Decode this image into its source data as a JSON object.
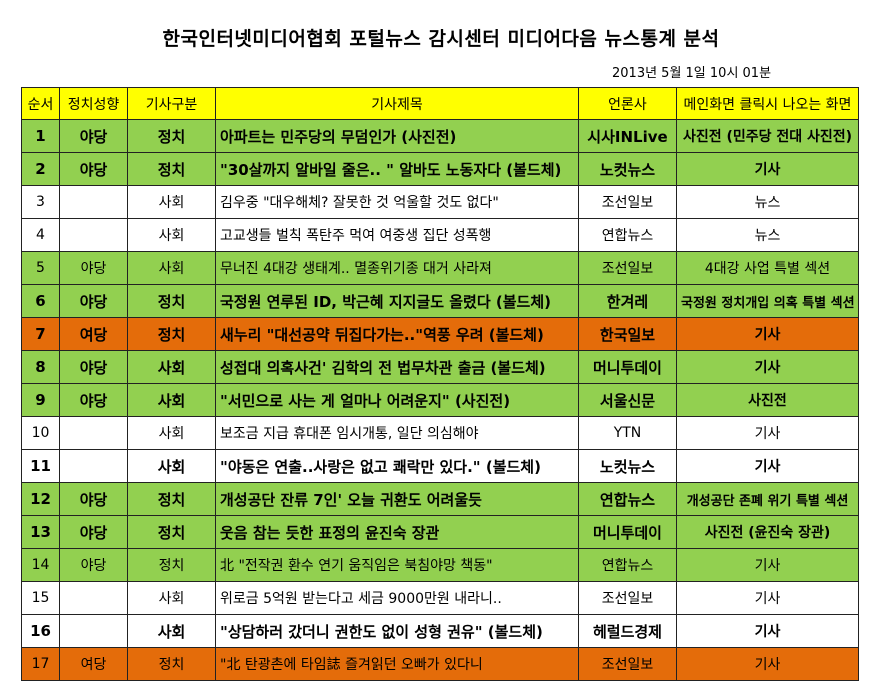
{
  "title": "한국인터넷미디어협회 포털뉴스 감시센터 미디어다음 뉴스통계 분석",
  "timestamp": "2013년 5월 1일 10시 01분",
  "colors": {
    "header": "#ffff00",
    "green": "#92d050",
    "orange": "#e46c0a",
    "white": "#ffffff"
  },
  "headers": [
    "순서",
    "정치성향",
    "기사구분",
    "기사제목",
    "언론사",
    "메인화면 클릭시 나오는 화면"
  ],
  "rows": [
    {
      "no": "1",
      "lean": "야당",
      "cat": "정치",
      "headline": "아파트는 민주당의 무덤인가 (사진전)",
      "outlet": "시사INLive",
      "screen": "사진전 (민주당 전대 사진전)",
      "color": "green",
      "bold": true
    },
    {
      "no": "2",
      "lean": "야당",
      "cat": "정치",
      "headline": "\"30살까지 알바일 줄은.. \" 알바도 노동자다 (볼드체)",
      "outlet": "노컷뉴스",
      "screen": "기사",
      "color": "green",
      "bold": true
    },
    {
      "no": "3",
      "lean": "",
      "cat": "사회",
      "headline": "김우중 \"대우해체? 잘못한 것 억울할 것도 없다\"",
      "outlet": "조선일보",
      "screen": "뉴스",
      "color": "white",
      "bold": false
    },
    {
      "no": "4",
      "lean": "",
      "cat": "사회",
      "headline": "고교생들 벌칙 폭탄주 먹여 여중생 집단 성폭행",
      "outlet": "연합뉴스",
      "screen": "뉴스",
      "color": "white",
      "bold": false
    },
    {
      "no": "5",
      "lean": "야당",
      "cat": "사회",
      "headline": "무너진 4대강 생태계.. 멸종위기종 대거 사라져",
      "outlet": "조선일보",
      "screen": "4대강 사업 특별 섹션",
      "color": "green",
      "bold": false
    },
    {
      "no": "6",
      "lean": "야당",
      "cat": "정치",
      "headline": "국정원 연루된 ID, 박근혜 지지글도 올렸다 (볼드체)",
      "outlet": "한겨레",
      "screen": "국정원 정치개입 의혹 특별 섹션",
      "color": "green",
      "bold": true,
      "small_screen": true
    },
    {
      "no": "7",
      "lean": "여당",
      "cat": "정치",
      "headline": "새누리 \"대선공약 뒤집다가는..\"역풍 우려 (볼드체)",
      "outlet": "한국일보",
      "screen": "기사",
      "color": "orange",
      "bold": true
    },
    {
      "no": "8",
      "lean": "야당",
      "cat": "사회",
      "headline": "성접대 의혹사건' 김학의 전 법무차관 출금 (볼드체)",
      "outlet": "머니투데이",
      "screen": "기사",
      "color": "green",
      "bold": true
    },
    {
      "no": "9",
      "lean": "야당",
      "cat": "사회",
      "headline": "\"서민으로 사는 게 얼마나 어려운지\" (사진전)",
      "outlet": "서울신문",
      "screen": "사진전",
      "color": "green",
      "bold": true
    },
    {
      "no": "10",
      "lean": "",
      "cat": "사회",
      "headline": "보조금 지급 휴대폰 임시개통, 일단 의심해야",
      "outlet": "YTN",
      "screen": "기사",
      "color": "white",
      "bold": false
    },
    {
      "no": "11",
      "lean": "",
      "cat": "사회",
      "headline": "\"야동은 연출..사랑은 없고 쾌락만 있다.\" (볼드체)",
      "outlet": "노컷뉴스",
      "screen": "기사",
      "color": "white",
      "bold": true
    },
    {
      "no": "12",
      "lean": "야당",
      "cat": "정치",
      "headline": "개성공단 잔류 7인' 오늘 귀환도 어려울듯",
      "outlet": "연합뉴스",
      "screen": "개성공단 존폐 위기 특별 섹션",
      "color": "green",
      "bold": true,
      "small_screen": true
    },
    {
      "no": "13",
      "lean": "야당",
      "cat": "정치",
      "headline": "웃음 참는 듯한 표정의 윤진숙 장관",
      "outlet": "머니투데이",
      "screen": "사진전 (윤진숙 장관)",
      "color": "green",
      "bold": true
    },
    {
      "no": "14",
      "lean": "야당",
      "cat": "정치",
      "headline": "北 \"전작권 환수 연기 움직임은 북침야망 책동\"",
      "outlet": "연합뉴스",
      "screen": "기사",
      "color": "green",
      "bold": false
    },
    {
      "no": "15",
      "lean": "",
      "cat": "사회",
      "headline": "위로금 5억원 받는다고 세금 9000만원 내라니..",
      "outlet": "조선일보",
      "screen": "기사",
      "color": "white",
      "bold": false
    },
    {
      "no": "16",
      "lean": "",
      "cat": "사회",
      "headline": "\"상담하러 갔더니 권한도 없이 성형 권유\" (볼드체)",
      "outlet": "헤럴드경제",
      "screen": "기사",
      "color": "white",
      "bold": true
    },
    {
      "no": "17",
      "lean": "여당",
      "cat": "정치",
      "headline": "\"北 탄광촌에 타임誌 즐겨읽던 오빠가 있다니",
      "outlet": "조선일보",
      "screen": "기사",
      "color": "orange",
      "bold": false
    }
  ]
}
